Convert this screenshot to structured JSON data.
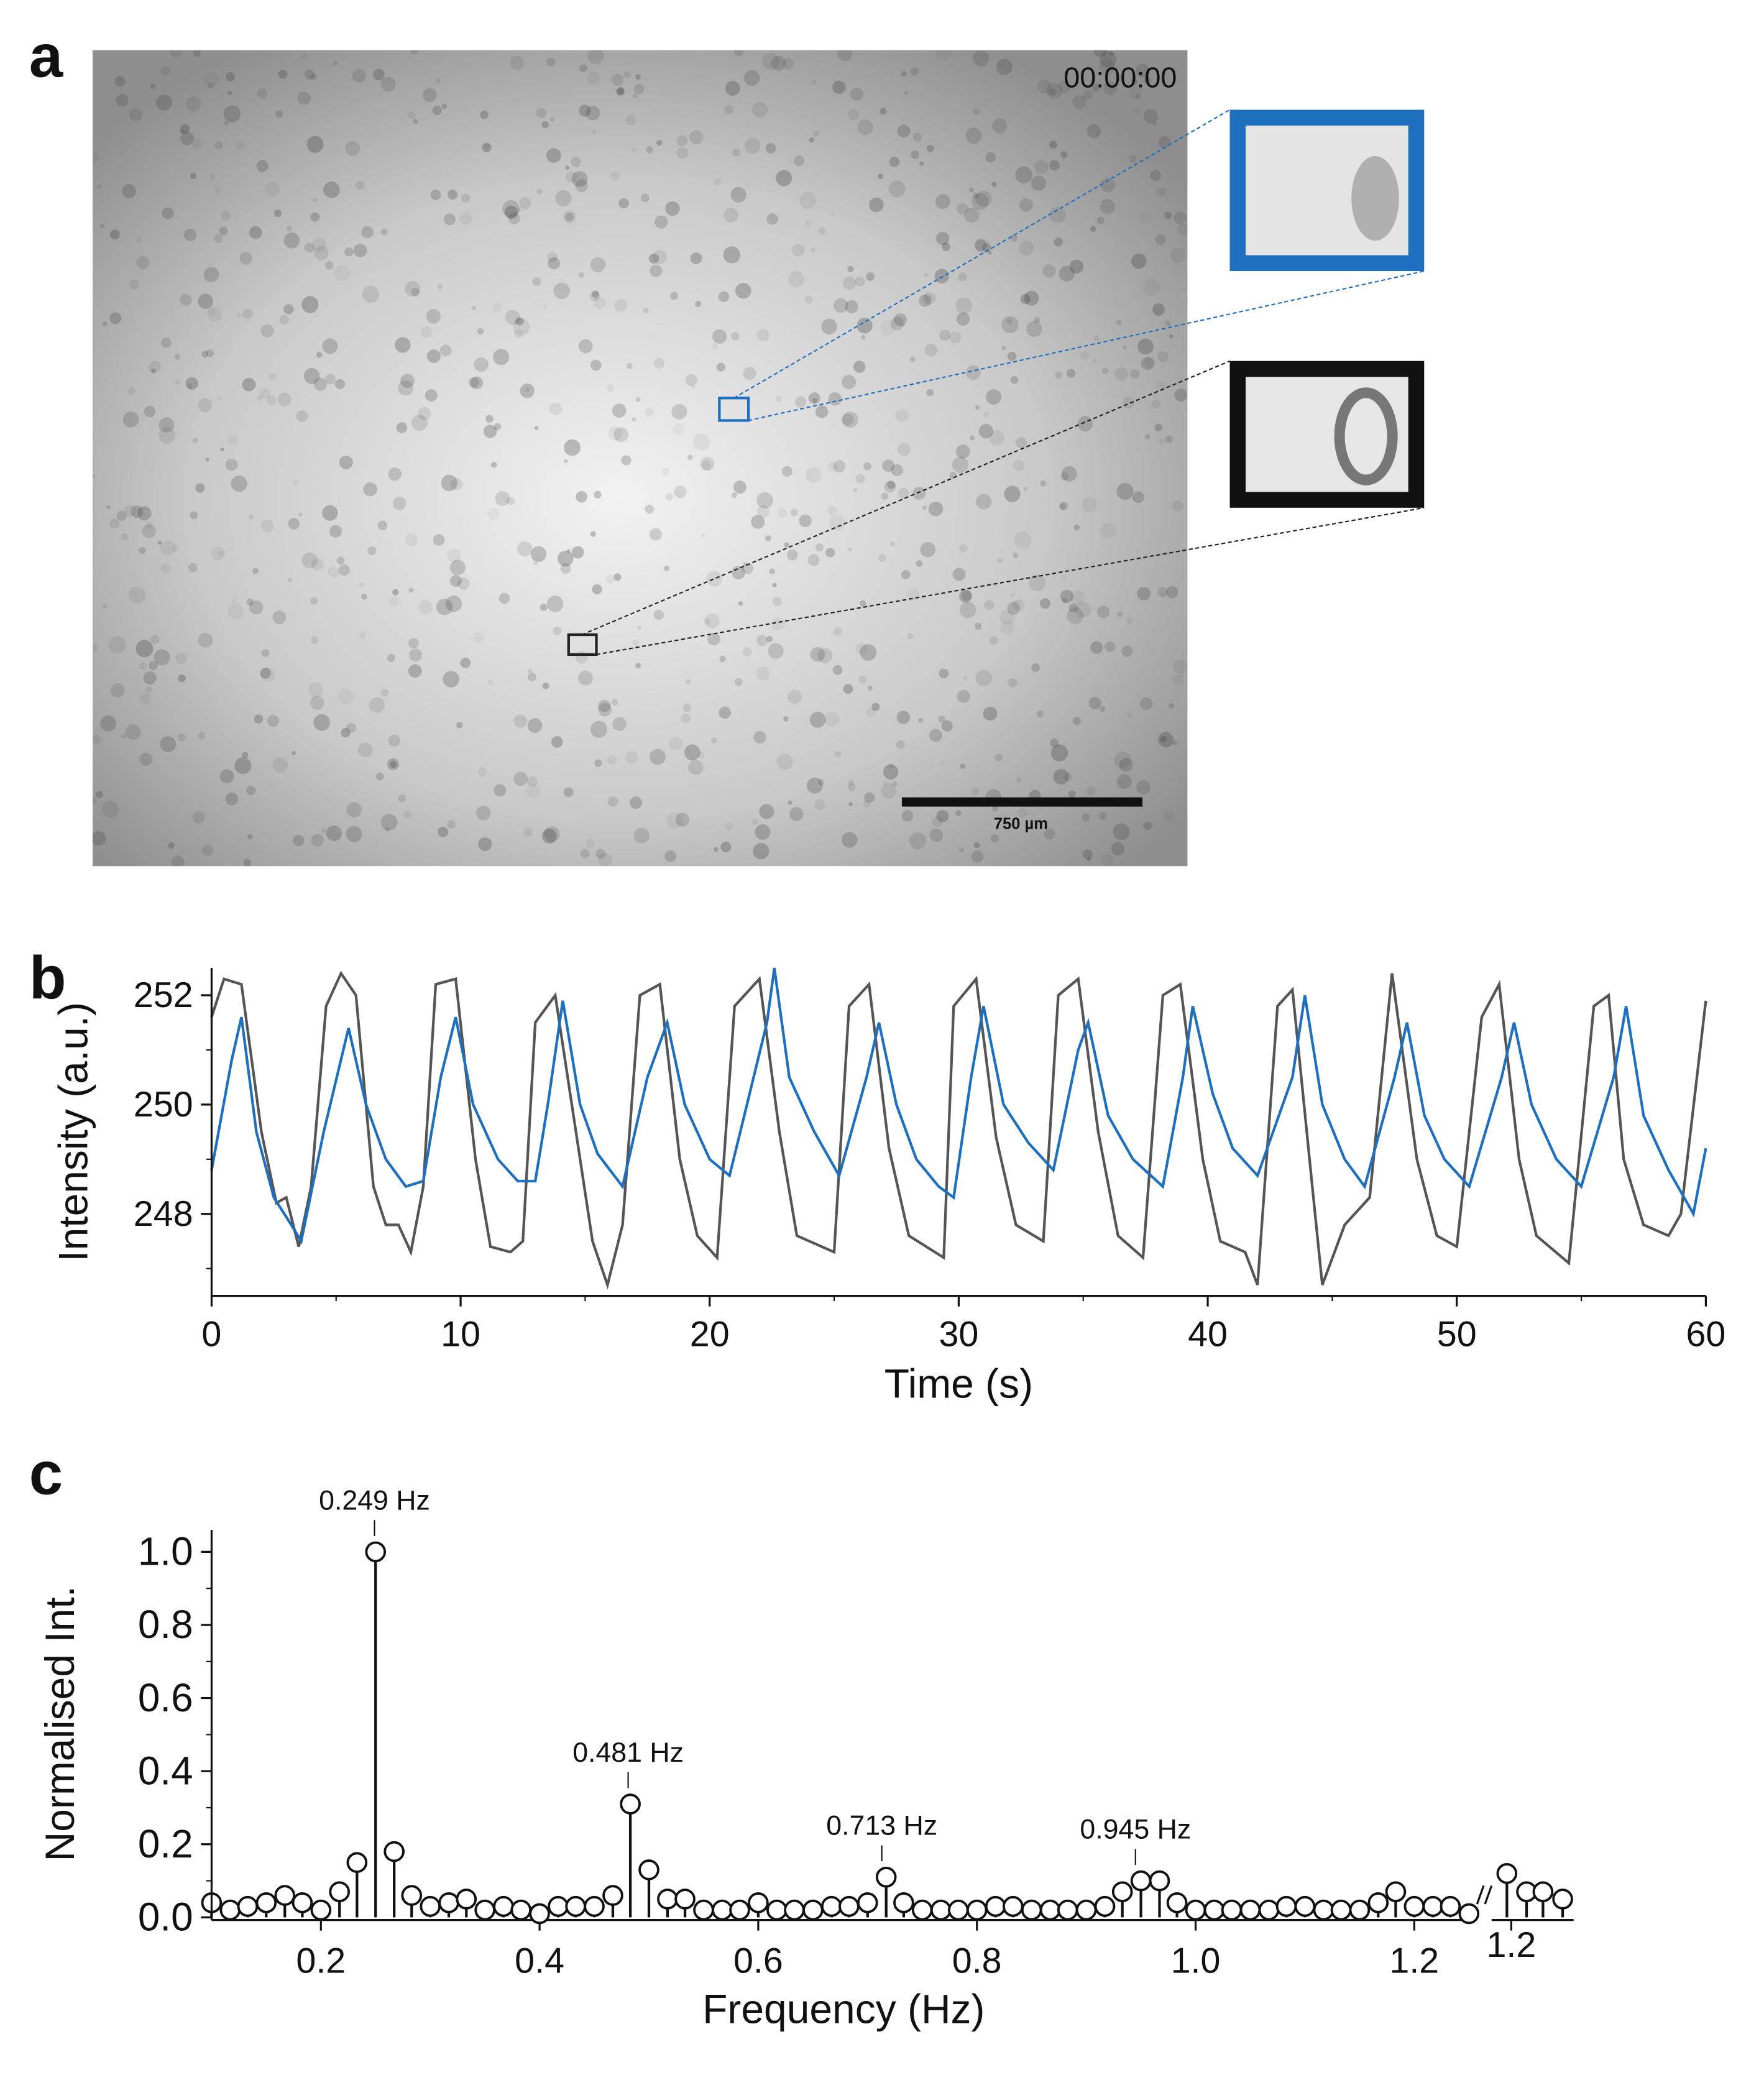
{
  "chart_data": [
    {
      "type": "image",
      "label": "a",
      "timestamp": "00:00:00",
      "scale_bar": "750 µm"
    },
    {
      "type": "line",
      "label": "b",
      "xlabel": "Time (s)",
      "ylabel": "Intensity (a.u.)",
      "xlim": [
        0,
        60
      ],
      "xticks": [
        0,
        10,
        20,
        30,
        40,
        50,
        60
      ],
      "xticks_minor": [
        5,
        15,
        25,
        35,
        45,
        55
      ],
      "ylim": [
        246.5,
        252.5
      ],
      "yticks": [
        248,
        250,
        252
      ],
      "yticks_minor": [
        247,
        249,
        251
      ],
      "series": [
        {
          "color": "#555555",
          "x": [
            0,
            0.5,
            1.2,
            2,
            2.6,
            3,
            3.5,
            4,
            4.6,
            5.2,
            5.8,
            6.5,
            7,
            7.5,
            8,
            8.5,
            9,
            9.8,
            10.6,
            11.2,
            12,
            12.5,
            13,
            13.8,
            14.8,
            15.3,
            15.9,
            16.5,
            17.2,
            18,
            18.8,
            19.5,
            20.3,
            21,
            22,
            22.8,
            23.5,
            25,
            25.6,
            26.4,
            27.2,
            28,
            29.4,
            29.8,
            30.7,
            31.5,
            32.3,
            33.4,
            34,
            34.8,
            35.6,
            36.4,
            37.4,
            38.2,
            38.9,
            39.8,
            40.5,
            41.5,
            42,
            42.8,
            43.4,
            44.2,
            44.6,
            45.5,
            46.5,
            47.4,
            48.4,
            49.2,
            50,
            51,
            51.7,
            52.5,
            53.2,
            54.5,
            55.5,
            56.1,
            56.7,
            57.5,
            58.5,
            59,
            60
          ],
          "values": [
            251.6,
            252.3,
            252.2,
            249.5,
            248.2,
            248.3,
            247.4,
            248.5,
            251.8,
            252.4,
            252,
            248.5,
            247.8,
            247.8,
            247.3,
            248.5,
            252.2,
            252.3,
            249,
            247.4,
            247.3,
            247.5,
            251.5,
            252,
            249,
            247.5,
            246.7,
            247.8,
            252,
            252.2,
            249,
            247.6,
            247.2,
            251.8,
            252.3,
            249.5,
            247.6,
            247.3,
            251.8,
            252.2,
            249.2,
            247.6,
            247.2,
            251.8,
            252.3,
            249.4,
            247.8,
            247.5,
            252,
            252.3,
            249.5,
            247.6,
            247.2,
            252,
            252.2,
            249,
            247.5,
            247.3,
            246.7,
            251.8,
            252.1,
            248.5,
            246.7,
            247.8,
            248.3,
            252.4,
            249,
            247.6,
            247.4,
            251.6,
            252.2,
            249,
            247.6,
            247.1,
            251.8,
            252,
            249,
            247.8,
            247.6,
            248,
            251.9
          ]
        },
        {
          "color": "#1f6fbf",
          "x": [
            0,
            0.8,
            1.2,
            1.8,
            2.5,
            3.2,
            3.6,
            4.5,
            5.5,
            6.2,
            7,
            7.8,
            8.5,
            9.2,
            9.8,
            10.5,
            11.5,
            12.3,
            13,
            13.5,
            14.1,
            14.8,
            15.5,
            16.5,
            17.5,
            18.3,
            19,
            20,
            20.8,
            21.5,
            22.3,
            22.6,
            23.2,
            24.2,
            25.2,
            26.3,
            26.8,
            27.5,
            28.3,
            29.2,
            29.8,
            30.5,
            31,
            31.8,
            32.8,
            33.8,
            34.8,
            35.2,
            36,
            37,
            38.2,
            39,
            39.4,
            40.2,
            41,
            42,
            43.4,
            43.9,
            44.6,
            45.5,
            46.3,
            47.5,
            48,
            48.7,
            49.5,
            50.5,
            51.8,
            52.3,
            53,
            54,
            55,
            56.3,
            56.8,
            57.5,
            58.5,
            59.5,
            60
          ],
          "values": [
            248.8,
            250.8,
            251.6,
            249.5,
            248.3,
            247.8,
            247.5,
            249.5,
            251.4,
            250,
            249,
            248.5,
            248.6,
            250.5,
            251.6,
            250,
            249,
            248.6,
            248.6,
            250,
            251.9,
            250,
            249.1,
            248.5,
            250.5,
            251.5,
            250,
            249,
            248.7,
            250,
            251.5,
            252.5,
            250.5,
            249.5,
            248.7,
            250.5,
            251.5,
            250,
            249,
            248.5,
            248.3,
            250.5,
            251.8,
            250,
            249.3,
            248.8,
            251,
            251.5,
            249.8,
            249,
            248.5,
            250.5,
            251.8,
            250.2,
            249.2,
            248.7,
            250.5,
            252,
            250,
            249,
            248.5,
            250.5,
            251.5,
            249.8,
            249,
            248.5,
            250.5,
            251.5,
            250,
            249,
            248.5,
            250.5,
            251.8,
            249.8,
            248.8,
            248,
            249.2
          ]
        }
      ]
    },
    {
      "type": "stem",
      "label": "c",
      "xlabel": "Frequency (Hz)",
      "ylabel": "Normalised Int.",
      "ylim": [
        0,
        1.06
      ],
      "yticks": [
        {
          "value": 0,
          "label": "0.0"
        },
        0.2,
        0.4,
        0.6,
        0.8,
        {
          "value": 1,
          "label": "1.0"
        }
      ],
      "yticks_minor": [
        0.1,
        0.3,
        0.5,
        0.7,
        0.9
      ],
      "segments": [
        {
          "xlim": [
            0.1,
            1.255
          ],
          "xticks": [
            0.2,
            0.4,
            0.6,
            0.8,
            {
              "value": 1,
              "label": "1.0"
            },
            1.2
          ],
          "x": [
            0.1,
            0.117,
            0.133,
            0.15,
            0.167,
            0.183,
            0.2,
            0.217,
            0.233,
            0.25,
            0.267,
            0.283,
            0.3,
            0.317,
            0.333,
            0.35,
            0.367,
            0.383,
            0.4,
            0.417,
            0.433,
            0.45,
            0.467,
            0.483,
            0.5,
            0.517,
            0.533,
            0.55,
            0.567,
            0.583,
            0.6,
            0.617,
            0.633,
            0.65,
            0.667,
            0.683,
            0.7,
            0.717,
            0.733,
            0.75,
            0.767,
            0.783,
            0.8,
            0.817,
            0.833,
            0.85,
            0.867,
            0.883,
            0.9,
            0.917,
            0.933,
            0.95,
            0.967,
            0.983,
            1.0,
            1.017,
            1.033,
            1.05,
            1.067,
            1.083,
            1.1,
            1.117,
            1.133,
            1.15,
            1.167,
            1.183,
            1.2,
            1.217,
            1.233,
            1.25
          ],
          "values": [
            0.04,
            0.02,
            0.03,
            0.04,
            0.06,
            0.04,
            0.02,
            0.07,
            0.15,
            1.0,
            0.18,
            0.06,
            0.03,
            0.04,
            0.05,
            0.02,
            0.03,
            0.02,
            0.01,
            0.03,
            0.03,
            0.03,
            0.06,
            0.31,
            0.13,
            0.05,
            0.05,
            0.02,
            0.02,
            0.02,
            0.04,
            0.02,
            0.02,
            0.02,
            0.03,
            0.03,
            0.04,
            0.11,
            0.04,
            0.02,
            0.02,
            0.02,
            0.02,
            0.03,
            0.03,
            0.02,
            0.02,
            0.02,
            0.02,
            0.03,
            0.07,
            0.1,
            0.1,
            0.04,
            0.02,
            0.02,
            0.02,
            0.02,
            0.02,
            0.03,
            0.03,
            0.02,
            0.02,
            0.02,
            0.04,
            0.07,
            0.03,
            0.03,
            0.03,
            0.01
          ]
        },
        {
          "xlim": [
            1.182,
            1.257
          ],
          "xticks": [
            1.2
          ],
          "x": [
            1.196,
            1.214,
            1.229,
            1.247
          ],
          "values": [
            0.12,
            0.07,
            0.07,
            0.05
          ]
        }
      ],
      "annotations": [
        {
          "text": "0.249 Hz",
          "x": 0.249
        },
        {
          "text": "0.481 Hz",
          "x": 0.481
        },
        {
          "text": "0.713 Hz",
          "x": 0.713
        },
        {
          "text": "0.945 Hz",
          "x": 0.945
        }
      ]
    }
  ]
}
